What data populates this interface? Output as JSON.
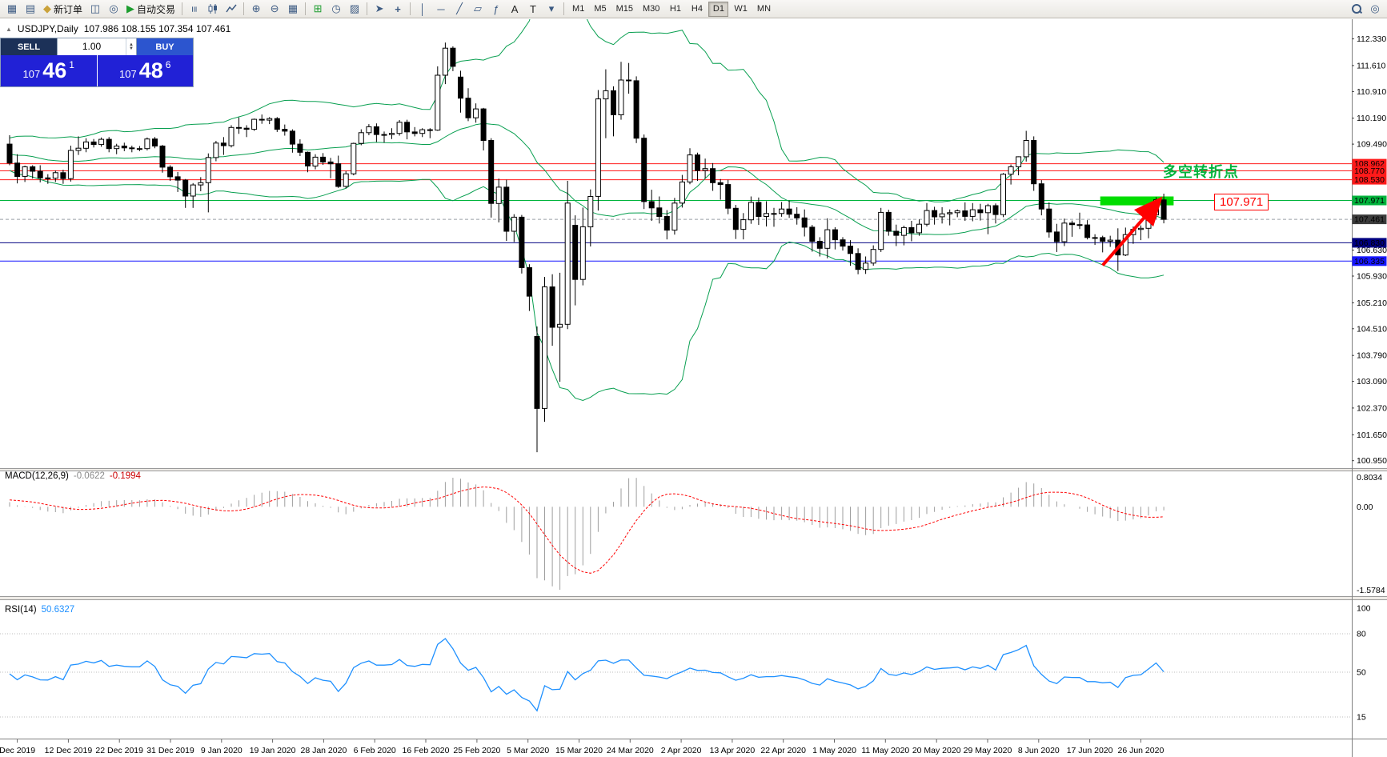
{
  "toolbar": {
    "new_order_label": "新订单",
    "autotrading_label": "自动交易",
    "timeframes": [
      "M1",
      "M5",
      "M15",
      "M30",
      "H1",
      "H4",
      "D1",
      "W1",
      "MN"
    ],
    "active_timeframe": "D1"
  },
  "chart": {
    "symbol_period": "USDJPY,Daily",
    "ohlc_text": "107.986 108.155 107.354 107.461"
  },
  "trade_panel": {
    "sell_label": "SELL",
    "buy_label": "BUY",
    "volume": "1.00",
    "sell_price_main": "107",
    "sell_price_big": "46",
    "sell_price_sup": "1",
    "buy_price_main": "107",
    "buy_price_big": "48",
    "buy_price_sup": "6"
  },
  "annotations": {
    "turning_point_text": "多空转折点",
    "price_label_text": "107.971"
  },
  "chart_data": {
    "type": "candlestick",
    "symbol": "USDJPY",
    "period": "Daily",
    "current_bar": {
      "open": 107.986,
      "high": 108.155,
      "low": 107.354,
      "close": 107.461
    },
    "bid_price": 107.461,
    "ylim": [
      100.75,
      112.86
    ],
    "price_axis_labels": [
      "112.330",
      "111.610",
      "110.910",
      "110.190",
      "109.490",
      "106.630",
      "105.930",
      "105.210",
      "104.510",
      "103.790",
      "103.090",
      "102.370",
      "101.650",
      "100.950"
    ],
    "axis_badges": [
      {
        "text": "108.962",
        "color": "#ff1a1a"
      },
      {
        "text": "108.770",
        "color": "#ff1a1a"
      },
      {
        "text": "108.530",
        "color": "#ff1a1a"
      },
      {
        "text": "107.971",
        "color": "#00b43c"
      },
      {
        "text": "107.461",
        "color": "#3c3c3c"
      },
      {
        "text": "106.830",
        "color": "#000080"
      },
      {
        "text": "106.335",
        "color": "#1616ff"
      }
    ],
    "hlines": [
      {
        "price": 108.962,
        "color": "#ff1a1a"
      },
      {
        "price": 108.77,
        "color": "#ff1a1a"
      },
      {
        "price": 108.53,
        "color": "#ff1a1a"
      },
      {
        "price": 107.971,
        "color": "#00b43c"
      },
      {
        "price": 106.83,
        "color": "#000080"
      },
      {
        "price": 106.335,
        "color": "#1616ff"
      }
    ],
    "bollinger": {
      "period": 20,
      "deviation": 2,
      "color": "#089f50"
    },
    "highlight_box": {
      "from_bar": 143,
      "to_bar": 152.6,
      "price_top": 108.08,
      "price_bottom": 107.84,
      "color": "#00dd00"
    },
    "trend_arrow": {
      "from_bar": 143,
      "from_price": 106.22,
      "to_bar": 150.3,
      "to_price": 107.95,
      "color": "#ff0000"
    },
    "macd": {
      "label": "MACD(12,26,9)",
      "value_main": "-0.0622",
      "value_signal": "-0.1994",
      "scale_max": "0.8034",
      "scale_zero": "0.00",
      "scale_min": "-1.5784"
    },
    "rsi": {
      "label": "RSI(14)",
      "value": "50.6327",
      "levels": [
        80,
        50,
        15
      ],
      "axis_labels": [
        "100",
        "80",
        "50",
        "15"
      ]
    },
    "time_labels": [
      "Dec 2019",
      "12 Dec 2019",
      "22 Dec 2019",
      "31 Dec 2019",
      "9 Jan 2020",
      "19 Jan 2020",
      "28 Jan 2020",
      "6 Feb 2020",
      "16 Feb 2020",
      "25 Feb 2020",
      "5 Mar 2020",
      "15 Mar 2020",
      "24 Mar 2020",
      "2 Apr 2020",
      "13 Apr 2020",
      "22 Apr 2020",
      "1 May 2020",
      "11 May 2020",
      "20 May 2020",
      "29 May 2020",
      "8 Jun 2020",
      "17 Jun 2020",
      "26 Jun 2020"
    ],
    "indicator_warmup": [
      108.1,
      107.9,
      108.3,
      108.1,
      108.5,
      108.2,
      108.6,
      108.4,
      108.8,
      108.5,
      108.9,
      109.1,
      108.7,
      109.0,
      109.3,
      108.9,
      109.2,
      109.5,
      109.1,
      109.4,
      109.6,
      109.2,
      109.0,
      109.3,
      109.6,
      109.4,
      109.1,
      108.9,
      109.2,
      109.5,
      109.3,
      109.0,
      108.8,
      109.1,
      109.4,
      109.6,
      109.3,
      109.1,
      109.4,
      109.2
    ],
    "candles": [
      [
        109.49,
        109.73,
        108.92,
        108.98
      ],
      [
        108.98,
        109.22,
        108.43,
        108.62
      ],
      [
        108.62,
        108.91,
        108.47,
        108.88
      ],
      [
        108.88,
        108.92,
        108.56,
        108.76
      ],
      [
        108.76,
        108.92,
        108.46,
        108.58
      ],
      [
        108.58,
        108.68,
        108.42,
        108.57
      ],
      [
        108.57,
        108.78,
        108.47,
        108.72
      ],
      [
        108.72,
        108.8,
        108.42,
        108.56
      ],
      [
        108.56,
        109.45,
        108.48,
        109.32
      ],
      [
        109.32,
        109.7,
        109.2,
        109.38
      ],
      [
        109.38,
        109.65,
        109.27,
        109.55
      ],
      [
        109.55,
        109.63,
        109.4,
        109.48
      ],
      [
        109.48,
        109.67,
        109.42,
        109.62
      ],
      [
        109.62,
        109.68,
        109.27,
        109.37
      ],
      [
        109.37,
        109.5,
        109.22,
        109.44
      ],
      [
        109.44,
        109.53,
        109.3,
        109.39
      ],
      [
        109.39,
        109.45,
        109.27,
        109.37
      ],
      [
        109.37,
        109.44,
        109.3,
        109.37
      ],
      [
        109.37,
        109.67,
        109.32,
        109.63
      ],
      [
        109.63,
        109.68,
        109.38,
        109.44
      ],
      [
        109.44,
        109.47,
        108.72,
        108.87
      ],
      [
        108.87,
        108.92,
        108.5,
        108.61
      ],
      [
        108.61,
        108.74,
        108.2,
        108.52
      ],
      [
        108.52,
        108.55,
        107.77,
        108.09
      ],
      [
        108.09,
        108.44,
        107.77,
        108.39
      ],
      [
        108.39,
        108.6,
        108.22,
        108.45
      ],
      [
        108.45,
        109.24,
        107.65,
        109.13
      ],
      [
        109.13,
        109.58,
        109.03,
        109.52
      ],
      [
        109.52,
        109.68,
        109.2,
        109.45
      ],
      [
        109.45,
        110.0,
        109.4,
        109.94
      ],
      [
        109.94,
        110.21,
        109.77,
        109.92
      ],
      [
        109.92,
        110.0,
        109.68,
        109.89
      ],
      [
        109.89,
        110.18,
        109.85,
        110.16
      ],
      [
        110.16,
        110.29,
        110.04,
        110.14
      ],
      [
        110.14,
        110.22,
        110.03,
        110.18
      ],
      [
        110.18,
        110.22,
        109.82,
        109.89
      ],
      [
        109.89,
        110.02,
        109.72,
        109.84
      ],
      [
        109.84,
        109.89,
        109.26,
        109.49
      ],
      [
        109.49,
        109.62,
        109.17,
        109.27
      ],
      [
        109.27,
        109.29,
        108.73,
        108.9
      ],
      [
        108.9,
        109.22,
        108.81,
        109.14
      ],
      [
        109.14,
        109.25,
        108.93,
        109.01
      ],
      [
        109.01,
        109.12,
        108.57,
        108.96
      ],
      [
        108.96,
        109.18,
        108.31,
        108.35
      ],
      [
        108.35,
        108.76,
        108.3,
        108.69
      ],
      [
        108.69,
        109.53,
        108.65,
        109.51
      ],
      [
        109.51,
        109.89,
        109.46,
        109.8
      ],
      [
        109.8,
        110.03,
        109.73,
        109.96
      ],
      [
        109.96,
        110.05,
        109.55,
        109.75
      ],
      [
        109.75,
        109.83,
        109.53,
        109.75
      ],
      [
        109.75,
        109.92,
        109.63,
        109.78
      ],
      [
        109.78,
        110.14,
        109.72,
        110.08
      ],
      [
        110.08,
        110.15,
        109.62,
        109.82
      ],
      [
        109.82,
        109.95,
        109.7,
        109.78
      ],
      [
        109.78,
        109.92,
        109.68,
        109.88
      ],
      [
        109.88,
        109.92,
        109.65,
        109.87
      ],
      [
        109.87,
        111.59,
        109.85,
        111.35
      ],
      [
        111.35,
        112.23,
        111.11,
        112.08
      ],
      [
        112.08,
        112.13,
        111.46,
        111.59
      ],
      [
        111.3,
        111.47,
        110.34,
        110.73
      ],
      [
        110.73,
        111.0,
        110.11,
        110.2
      ],
      [
        110.2,
        110.59,
        110.07,
        110.44
      ],
      [
        110.44,
        110.47,
        109.32,
        109.59
      ],
      [
        109.59,
        109.65,
        107.51,
        107.89
      ],
      [
        107.89,
        108.56,
        107.38,
        108.33
      ],
      [
        108.33,
        108.53,
        106.88,
        107.14
      ],
      [
        107.14,
        107.6,
        106.85,
        107.52
      ],
      [
        107.52,
        107.58,
        106.0,
        106.16
      ],
      [
        106.16,
        106.25,
        104.99,
        105.39
      ],
      [
        104.3,
        104.57,
        101.18,
        102.36
      ],
      [
        102.36,
        105.91,
        102.0,
        105.64
      ],
      [
        105.64,
        105.98,
        104.05,
        104.55
      ],
      [
        104.55,
        106.02,
        103.08,
        104.63
      ],
      [
        104.63,
        108.5,
        104.5,
        107.9
      ],
      [
        107.3,
        107.57,
        105.14,
        105.84
      ],
      [
        105.84,
        107.78,
        105.68,
        107.26
      ],
      [
        107.26,
        108.27,
        106.73,
        108.08
      ],
      [
        108.08,
        110.95,
        107.7,
        110.71
      ],
      [
        110.71,
        111.51,
        109.65,
        110.93
      ],
      [
        110.93,
        111.05,
        109.7,
        110.28
      ],
      [
        110.28,
        111.71,
        110.15,
        111.22
      ],
      [
        111.22,
        111.68,
        110.85,
        111.2
      ],
      [
        111.2,
        111.32,
        109.52,
        109.65
      ],
      [
        109.65,
        109.75,
        107.74,
        107.94
      ],
      [
        107.94,
        108.26,
        107.42,
        107.77
      ],
      [
        107.77,
        108.08,
        107.35,
        107.54
      ],
      [
        107.54,
        107.71,
        106.92,
        107.17
      ],
      [
        107.17,
        108.04,
        107.05,
        107.9
      ],
      [
        107.9,
        108.66,
        107.78,
        108.47
      ],
      [
        108.47,
        109.38,
        108.41,
        109.2
      ],
      [
        109.2,
        109.26,
        108.5,
        108.78
      ],
      [
        108.78,
        109.1,
        108.56,
        108.83
      ],
      [
        108.83,
        108.98,
        108.23,
        108.45
      ],
      [
        108.45,
        108.55,
        107.99,
        108.4
      ],
      [
        108.4,
        108.53,
        107.6,
        107.76
      ],
      [
        107.76,
        107.85,
        106.93,
        107.19
      ],
      [
        107.19,
        107.63,
        106.92,
        107.45
      ],
      [
        107.45,
        108.08,
        107.34,
        107.92
      ],
      [
        107.92,
        108.05,
        107.31,
        107.54
      ],
      [
        107.54,
        107.95,
        107.27,
        107.62
      ],
      [
        107.62,
        107.77,
        107.26,
        107.62
      ],
      [
        107.62,
        107.93,
        107.53,
        107.74
      ],
      [
        107.74,
        107.97,
        107.5,
        107.6
      ],
      [
        107.6,
        107.79,
        107.32,
        107.5
      ],
      [
        107.5,
        107.73,
        107.0,
        107.25
      ],
      [
        107.25,
        107.31,
        106.59,
        106.87
      ],
      [
        106.87,
        106.98,
        106.46,
        106.68
      ],
      [
        106.68,
        107.49,
        106.41,
        107.18
      ],
      [
        107.18,
        107.25,
        106.65,
        106.91
      ],
      [
        106.91,
        106.98,
        106.62,
        106.74
      ],
      [
        106.74,
        106.9,
        106.21,
        106.54
      ],
      [
        106.54,
        106.68,
        105.98,
        106.11
      ],
      [
        106.11,
        106.46,
        105.99,
        106.28
      ],
      [
        106.28,
        106.76,
        106.21,
        106.65
      ],
      [
        106.65,
        107.77,
        106.58,
        107.65
      ],
      [
        107.65,
        107.72,
        107.02,
        107.14
      ],
      [
        107.14,
        107.32,
        106.74,
        107.03
      ],
      [
        107.03,
        107.29,
        106.76,
        107.24
      ],
      [
        107.24,
        107.42,
        106.87,
        107.1
      ],
      [
        107.1,
        107.46,
        107.02,
        107.33
      ],
      [
        107.33,
        107.9,
        107.27,
        107.7
      ],
      [
        107.7,
        107.8,
        107.32,
        107.53
      ],
      [
        107.53,
        107.79,
        107.35,
        107.61
      ],
      [
        107.61,
        107.73,
        107.3,
        107.64
      ],
      [
        107.64,
        107.73,
        107.52,
        107.69
      ],
      [
        107.69,
        107.92,
        107.42,
        107.54
      ],
      [
        107.54,
        107.9,
        107.41,
        107.72
      ],
      [
        107.72,
        107.88,
        107.43,
        107.64
      ],
      [
        107.64,
        107.88,
        107.06,
        107.83
      ],
      [
        107.83,
        107.89,
        107.35,
        107.59
      ],
      [
        107.59,
        108.71,
        107.52,
        108.68
      ],
      [
        108.68,
        108.94,
        108.4,
        108.88
      ],
      [
        108.88,
        109.16,
        108.65,
        109.15
      ],
      [
        109.15,
        109.85,
        109.02,
        109.59
      ],
      [
        109.59,
        109.7,
        108.23,
        108.42
      ],
      [
        108.42,
        108.52,
        107.57,
        107.74
      ],
      [
        107.74,
        107.92,
        106.97,
        107.12
      ],
      [
        107.12,
        107.34,
        106.58,
        106.86
      ],
      [
        106.86,
        107.48,
        106.74,
        107.36
      ],
      [
        107.36,
        107.43,
        106.99,
        107.32
      ],
      [
        107.32,
        107.64,
        107.2,
        107.31
      ],
      [
        107.31,
        107.44,
        106.92,
        106.97
      ],
      [
        106.97,
        107.06,
        106.77,
        106.97
      ],
      [
        106.97,
        107.02,
        106.57,
        106.87
      ],
      [
        106.87,
        107.02,
        106.72,
        106.9
      ],
      [
        106.9,
        107.22,
        106.07,
        106.5
      ],
      [
        106.5,
        107.24,
        106.47,
        107.05
      ],
      [
        107.05,
        107.27,
        106.8,
        107.19
      ],
      [
        107.19,
        107.3,
        106.9,
        107.22
      ],
      [
        107.22,
        107.75,
        106.95,
        107.58
      ],
      [
        107.58,
        108.06,
        107.48,
        107.99
      ],
      [
        107.986,
        108.155,
        107.354,
        107.461
      ]
    ]
  }
}
